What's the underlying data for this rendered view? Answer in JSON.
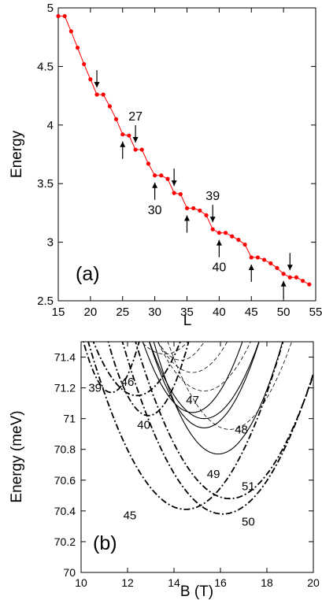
{
  "chart_data": [
    {
      "type": "line",
      "panel_label": "(a)",
      "xlabel": "L",
      "ylabel": "Energy",
      "xlim": [
        15,
        55
      ],
      "ylim": [
        2.5,
        5
      ],
      "xticks": [
        "15",
        "20",
        "25",
        "30",
        "35",
        "40",
        "45",
        "50",
        "55"
      ],
      "yticks": [
        "2.5",
        "3",
        "3.5",
        "4",
        "4.5",
        "5"
      ],
      "grid": false,
      "color": "#ff0000",
      "x": [
        15,
        16,
        17,
        18,
        19,
        20,
        21,
        22,
        23,
        24,
        25,
        26,
        27,
        28,
        29,
        30,
        31,
        32,
        33,
        34,
        35,
        36,
        37,
        38,
        39,
        40,
        41,
        42,
        43,
        44,
        45,
        46,
        47,
        48,
        49,
        50,
        51,
        52,
        53,
        54
      ],
      "y": [
        4.93,
        4.93,
        4.8,
        4.66,
        4.52,
        4.39,
        4.26,
        4.26,
        4.16,
        4.05,
        3.92,
        3.91,
        3.79,
        3.79,
        3.67,
        3.57,
        3.57,
        3.54,
        3.42,
        3.41,
        3.29,
        3.29,
        3.27,
        3.23,
        3.11,
        3.08,
        3.08,
        3.05,
        3.02,
        2.98,
        2.87,
        2.87,
        2.85,
        2.82,
        2.78,
        2.73,
        2.7,
        2.7,
        2.67,
        2.64
      ],
      "annotations": [
        {
          "x": 21,
          "direction": "down",
          "label": ""
        },
        {
          "x": 25,
          "direction": "up",
          "label": ""
        },
        {
          "x": 27,
          "direction": "down",
          "label": "27"
        },
        {
          "x": 30,
          "direction": "up",
          "label": "30"
        },
        {
          "x": 33,
          "direction": "down",
          "label": ""
        },
        {
          "x": 35,
          "direction": "up",
          "label": ""
        },
        {
          "x": 39,
          "direction": "down",
          "label": "39"
        },
        {
          "x": 40,
          "direction": "up",
          "label": "40"
        },
        {
          "x": 45,
          "direction": "up",
          "label": ""
        },
        {
          "x": 50,
          "direction": "up",
          "label": ""
        },
        {
          "x": 51,
          "direction": "down",
          "label": ""
        }
      ]
    },
    {
      "type": "line",
      "panel_label": "(b)",
      "xlabel": "B (T)",
      "ylabel": "Energy (meV)",
      "xlim": [
        10,
        20
      ],
      "ylim": [
        70,
        71.5
      ],
      "xticks": [
        "10",
        "12",
        "14",
        "16",
        "18",
        "20"
      ],
      "yticks": [
        "70",
        "70.2",
        "70.4",
        "70.6",
        "70.8",
        "71",
        "71.2",
        "71.4"
      ],
      "grid": false,
      "series": [
        {
          "name": "39",
          "style": "dashdot",
          "minimum": [
            11.3,
            71.17
          ],
          "curvature": 0.23
        },
        {
          "name": "46",
          "style": "dashdot",
          "minimum": [
            12.4,
            71.15
          ],
          "curvature": 0.1
        },
        {
          "name": "40",
          "style": "dashdot",
          "minimum": [
            12.9,
            71.02
          ],
          "curvature": 0.16
        },
        {
          "name": "45",
          "style": "dashdot",
          "minimum": [
            14.5,
            70.41
          ],
          "curvature": 0.062
        },
        {
          "name": "51",
          "style": "dashdot",
          "minimum": [
            16.4,
            70.48
          ],
          "curvature": 0.062
        },
        {
          "name": "50",
          "style": "dashdot",
          "minimum": [
            16.1,
            70.38
          ],
          "curvature": 0.06
        },
        {
          "name": "47",
          "style": "solid",
          "minimum": [
            14.8,
            71.04
          ],
          "curvature": 0.1
        },
        {
          "name": "48",
          "style": "solid",
          "minimum": [
            15.3,
            70.94
          ],
          "curvature": 0.1
        },
        {
          "name": "49",
          "style": "solid",
          "minimum": [
            15.9,
            70.77
          ],
          "curvature": 0.095
        },
        {
          "name": "",
          "style": "solid",
          "minimum": [
            15.3,
            71.0
          ],
          "curvature": 0.09
        },
        {
          "name": "",
          "style": "dashed",
          "minimum": [
            14.3,
            71.38
          ],
          "curvature": 0.12
        },
        {
          "name": "",
          "style": "dashed",
          "minimum": [
            15.3,
            71.18
          ],
          "curvature": 0.08
        },
        {
          "name": "",
          "style": "dashed",
          "minimum": [
            16.4,
            70.93
          ],
          "curvature": 0.08
        },
        {
          "name": "",
          "style": "dashed",
          "minimum": [
            13.6,
            71.42
          ],
          "curvature": 0.08
        },
        {
          "name": "",
          "style": "dashed",
          "minimum": [
            14.8,
            71.3
          ],
          "curvature": 0.09
        }
      ],
      "labels": [
        {
          "text": "39",
          "x": 10.6,
          "y": 71.2
        },
        {
          "text": "46",
          "x": 12.0,
          "y": 71.24
        },
        {
          "text": "40",
          "x": 12.7,
          "y": 70.96
        },
        {
          "text": "47",
          "x": 14.8,
          "y": 71.12
        },
        {
          "text": "48",
          "x": 16.9,
          "y": 70.93
        },
        {
          "text": "49",
          "x": 15.7,
          "y": 70.64
        },
        {
          "text": "51",
          "x": 17.2,
          "y": 70.56
        },
        {
          "text": "45",
          "x": 12.1,
          "y": 70.37
        },
        {
          "text": "50",
          "x": 17.2,
          "y": 70.33
        }
      ]
    }
  ]
}
